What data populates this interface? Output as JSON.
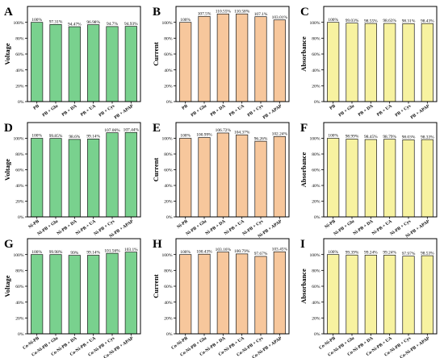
{
  "colors": {
    "voltage": "#79d18e",
    "current": "#f7c79c",
    "absorbance": "#f7f2a0",
    "edge": "#1a1a1a"
  },
  "chart_data": [
    {
      "panel": "A",
      "type": "bar",
      "ylabel": "Voltage",
      "color_key": "voltage",
      "categories": [
        "PB",
        "PB + Glu",
        "PB + DA",
        "PB + UA",
        "PB + Cys",
        "PB + APAP"
      ],
      "values": [
        100,
        97.31,
        94.47,
        96.98,
        94.7,
        94.93
      ],
      "data_labels": [
        "100%",
        "97.31%",
        "94.47%",
        "96.98%",
        "94.7%",
        "94.93%"
      ],
      "yticks": [
        "0%",
        "20%",
        "40%",
        "60%",
        "80%",
        "100%"
      ],
      "ylim": [
        0,
        120
      ]
    },
    {
      "panel": "B",
      "type": "bar",
      "ylabel": "Current",
      "color_key": "current",
      "categories": [
        "PB",
        "PB + Glu",
        "PB + DA",
        "PB + UA",
        "PB + Cys",
        "PB + APAP"
      ],
      "values": [
        100,
        107.5,
        110.55,
        110.58,
        107.1,
        103.01
      ],
      "data_labels": [
        "100%",
        "107.5%",
        "110.55%",
        "110.58%",
        "107.1%",
        "103.01%"
      ],
      "yticks": [
        "0%",
        "20%",
        "40%",
        "60%",
        "80%",
        "100%"
      ],
      "ylim": [
        0,
        120
      ]
    },
    {
      "panel": "C",
      "type": "bar",
      "ylabel": "Absorbance",
      "color_key": "absorbance",
      "categories": [
        "PB",
        "PB + Glu",
        "PB + DA",
        "PB + UA",
        "PB + Cys",
        "PB + APAP"
      ],
      "values": [
        100,
        99.03,
        98.55,
        98.63,
        98.31,
        98.43
      ],
      "data_labels": [
        "100%",
        "99.03%",
        "98.55%",
        "98.63%",
        "98.31%",
        "98.43%"
      ],
      "yticks": [
        "0%",
        "20%",
        "40%",
        "60%",
        "80%",
        "100%"
      ],
      "ylim": [
        0,
        120
      ]
    },
    {
      "panel": "D",
      "type": "bar",
      "ylabel": "Voltage",
      "color_key": "voltage",
      "categories": [
        "Ni-PB",
        "Ni-PB + Glu",
        "Ni-PB + DA",
        "Ni-PB + UA",
        "Ni-PB + Cys",
        "Ni-PB + APAP"
      ],
      "values": [
        100,
        99.85,
        98.6,
        99.14,
        107.06,
        107.44
      ],
      "data_labels": [
        "100%",
        "99.85%",
        "98.6%",
        "99.14%",
        "107.06%",
        "107.44%"
      ],
      "yticks": [
        "0%",
        "20%",
        "40%",
        "60%",
        "80%",
        "100%"
      ],
      "ylim": [
        0,
        120
      ]
    },
    {
      "panel": "E",
      "type": "bar",
      "ylabel": "Current",
      "color_key": "current",
      "categories": [
        "Ni-PB",
        "Ni-PB + Glu",
        "Ni-PB + DA",
        "Ni-PB + UA",
        "Ni-PB + Cys",
        "Ni-PB + APAP"
      ],
      "values": [
        100,
        100.99,
        106.72,
        104.37,
        96.26,
        102.24
      ],
      "data_labels": [
        "100%",
        "100.99%",
        "106.72%",
        "104.37%",
        "96.26%",
        "102.24%"
      ],
      "yticks": [
        "0%",
        "20%",
        "40%",
        "60%",
        "80%",
        "100%"
      ],
      "ylim": [
        0,
        120
      ]
    },
    {
      "panel": "F",
      "type": "bar",
      "ylabel": "Absorbance",
      "color_key": "absorbance",
      "categories": [
        "Ni-PB",
        "Ni-PB + Glu",
        "Ni-PB + DA",
        "Ni-PB + UA",
        "Ni-PB + Cys",
        "Ni-PB + APAP"
      ],
      "values": [
        100,
        98.99,
        98.45,
        98.79,
        98.03,
        98.33
      ],
      "data_labels": [
        "100%",
        "98.99%",
        "98.45%",
        "98.79%",
        "98.03%",
        "98.33%"
      ],
      "yticks": [
        "0%",
        "20%",
        "40%",
        "60%",
        "80%",
        "100%"
      ],
      "ylim": [
        0,
        120
      ]
    },
    {
      "panel": "G",
      "type": "bar",
      "ylabel": "Voltage",
      "color_key": "voltage",
      "categories": [
        "Co-Ni-PB",
        "Co-Ni-PB + Glu",
        "Co-Ni-PB + DA",
        "Co-Ni-PB + UA",
        "Co-Ni-PB + Cys",
        "Co-Ni-PB + APAP"
      ],
      "values": [
        100,
        99.98,
        99,
        99.14,
        101.56,
        103.1
      ],
      "data_labels": [
        "100%",
        "99.98%",
        "99%",
        "99.14%",
        "101.56%",
        "103.1%"
      ],
      "yticks": [
        "0%",
        "20%",
        "40%",
        "60%",
        "80%",
        "100%"
      ],
      "ylim": [
        0,
        120
      ]
    },
    {
      "panel": "H",
      "type": "bar",
      "ylabel": "Current",
      "color_key": "current",
      "categories": [
        "Co-Ni-PB",
        "Co-Ni-PB + Glu",
        "Co-Ni-PB + DA",
        "Co-Ni-PB + UA",
        "Co-Ni-PB + Cys",
        "Co-Ni-PB + APAP"
      ],
      "values": [
        100,
        100.43,
        103.16,
        100.79,
        97.67,
        103.45
      ],
      "data_labels": [
        "100%",
        "100.43%",
        "103.16%",
        "100.79%",
        "97.67%",
        "103.45%"
      ],
      "yticks": [
        "0%",
        "20%",
        "40%",
        "60%",
        "80%",
        "100%"
      ],
      "ylim": [
        0,
        120
      ]
    },
    {
      "panel": "I",
      "type": "bar",
      "ylabel": "Absorbance",
      "color_key": "absorbance",
      "categories": [
        "Co-Ni-PB",
        "Co-Ni-PB + Glu",
        "Co-Ni-PB + DA",
        "Co-Ni-PB + UA",
        "Co-Ni-PB + Cys",
        "Co-Ni-PB + APAP"
      ],
      "values": [
        100,
        99.39,
        99.24,
        99.24,
        97.97,
        98.53
      ],
      "data_labels": [
        "100%",
        "99.39%",
        "99.24%",
        "99.24%",
        "97.97%",
        "98.53%"
      ],
      "yticks": [
        "0%",
        "20%",
        "40%",
        "60%",
        "80%",
        "100%"
      ],
      "ylim": [
        0,
        120
      ]
    }
  ]
}
